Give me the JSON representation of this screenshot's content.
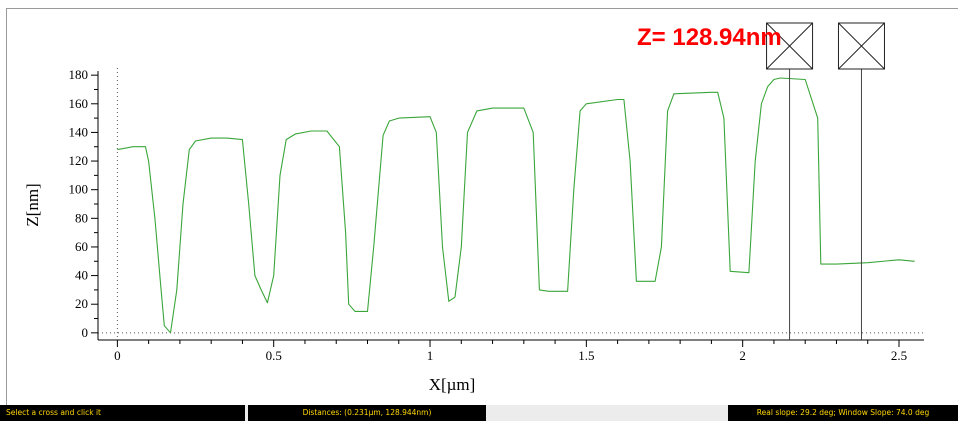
{
  "annotation": {
    "z_readout": "Z= 128.94nm"
  },
  "status": {
    "instruction": "Select a cross and click it",
    "distances": "Distances: (0.231µm, 128.944nm)",
    "slopes": "Real slope: 29.2 deg; Window Slope: 74.0 deg"
  },
  "colors": {
    "profile_line": "#3aa63a",
    "annotation": "#ff0000",
    "status_text": "#ffd700",
    "status_bg": "#000000"
  },
  "cursors": [
    {
      "name": "cursor-1",
      "x": 2.15,
      "icon": "crossed-box-icon"
    },
    {
      "name": "cursor-2",
      "x": 2.38,
      "icon": "crossed-box-icon"
    }
  ],
  "chart_data": {
    "type": "line",
    "xlabel": "X[µm]",
    "ylabel": "Z[nm]",
    "xlim": [
      -0.03,
      2.58
    ],
    "ylim": [
      -5,
      185
    ],
    "x_ticks": [
      0,
      0.5,
      1,
      1.5,
      2,
      2.5
    ],
    "x_tick_labels": [
      "0",
      "0.5",
      "1",
      "1.5",
      "2",
      "2.5"
    ],
    "y_ticks": [
      0,
      20,
      40,
      60,
      80,
      100,
      120,
      140,
      160,
      180
    ],
    "y_tick_labels": [
      "0",
      "20",
      "40",
      "60",
      "80",
      "100",
      "120",
      "140",
      "160",
      "180"
    ],
    "zero_line": true,
    "grid": false,
    "series": [
      {
        "x": [
          0,
          0.05,
          0.09,
          0.1,
          0.12,
          0.14,
          0.15,
          0.17,
          0.19,
          0.21,
          0.23,
          0.25,
          0.3,
          0.35,
          0.4,
          0.42,
          0.44,
          0.46,
          0.48,
          0.5,
          0.52,
          0.54,
          0.57,
          0.62,
          0.67,
          0.71,
          0.73,
          0.74,
          0.76,
          0.8,
          0.82,
          0.85,
          0.87,
          0.9,
          1.0,
          1.02,
          1.04,
          1.06,
          1.08,
          1.1,
          1.12,
          1.15,
          1.2,
          1.3,
          1.33,
          1.35,
          1.38,
          1.44,
          1.46,
          1.48,
          1.5,
          1.6,
          1.62,
          1.64,
          1.66,
          1.72,
          1.74,
          1.76,
          1.78,
          1.9,
          1.92,
          1.94,
          1.96,
          2.02,
          2.04,
          2.06,
          2.08,
          2.1,
          2.12,
          2.2,
          2.24,
          2.25,
          2.3,
          2.4,
          2.5,
          2.55
        ],
        "y": [
          128,
          130,
          130,
          120,
          80,
          30,
          5,
          0,
          30,
          90,
          128,
          134,
          136,
          136,
          135,
          90,
          40,
          30,
          21,
          40,
          110,
          135,
          139,
          141,
          141,
          130,
          70,
          20,
          15,
          15,
          60,
          138,
          148,
          150,
          151,
          140,
          60,
          22,
          25,
          60,
          140,
          155,
          157,
          157,
          140,
          30,
          29,
          29,
          100,
          155,
          160,
          163,
          163,
          120,
          36,
          36,
          60,
          155,
          167,
          168,
          168,
          150,
          43,
          42,
          120,
          160,
          172,
          177,
          178,
          177,
          150,
          48,
          48,
          49,
          51,
          50
        ]
      }
    ]
  }
}
